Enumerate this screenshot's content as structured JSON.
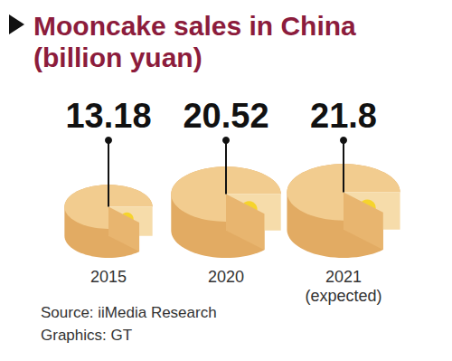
{
  "chart_data": {
    "type": "pictorial",
    "title": "Mooncake sales in China\n(billion yuan)",
    "categories": [
      "2015",
      "2020",
      "2021\n(expected)"
    ],
    "values": [
      13.18,
      20.52,
      21.8
    ],
    "color": "#f2cc8f",
    "data_labels": true,
    "tick_labels": "x",
    "annotations": [
      "Source: iiMedia Research",
      "Graphics: GT"
    ]
  }
}
